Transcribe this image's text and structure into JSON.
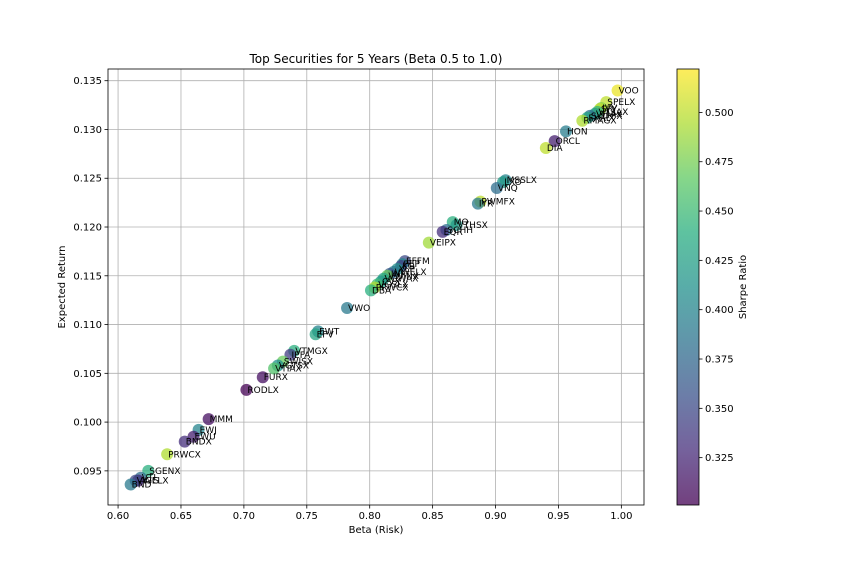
{
  "chart_data": {
    "type": "scatter",
    "title": "Top Securities for 5 Years (Beta 0.5 to 1.0)",
    "xlabel": "Beta (Risk)",
    "ylabel": "Expected Return",
    "xlim": [
      0.592,
      1.018
    ],
    "ylim": [
      0.0915,
      0.1362
    ],
    "xticks": [
      "0.60",
      "0.65",
      "0.70",
      "0.75",
      "0.80",
      "0.85",
      "0.90",
      "0.95",
      "1.00"
    ],
    "yticks": [
      "0.095",
      "0.100",
      "0.105",
      "0.110",
      "0.115",
      "0.120",
      "0.125",
      "0.130",
      "0.135"
    ],
    "grid": true,
    "colorbar": {
      "label": "Sharpe Ratio",
      "colormap": "viridis",
      "range": [
        0.301,
        0.522
      ],
      "ticks": [
        "0.325",
        "0.350",
        "0.375",
        "0.400",
        "0.425",
        "0.450",
        "0.475",
        "0.500"
      ]
    },
    "points": [
      {
        "label": "VOO",
        "x": 0.997,
        "y": 0.134,
        "sharpe": 0.515
      },
      {
        "label": "SPELX",
        "x": 0.988,
        "y": 0.1328,
        "sharpe": 0.5
      },
      {
        "label": "IVV",
        "x": 0.984,
        "y": 0.1322,
        "sharpe": 0.48
      },
      {
        "label": "SPY",
        "x": 0.983,
        "y": 0.1321,
        "sharpe": 0.5
      },
      {
        "label": "VTSAX",
        "x": 0.981,
        "y": 0.1318,
        "sharpe": 0.445
      },
      {
        "label": "VFIAX",
        "x": 0.979,
        "y": 0.1316,
        "sharpe": 0.42
      },
      {
        "label": "SWPPX",
        "x": 0.975,
        "y": 0.1314,
        "sharpe": 0.38
      },
      {
        "label": "FXAIX",
        "x": 0.973,
        "y": 0.1312,
        "sharpe": 0.43
      },
      {
        "label": "RMAGX",
        "x": 0.969,
        "y": 0.1309,
        "sharpe": 0.495
      },
      {
        "label": "HON",
        "x": 0.956,
        "y": 0.1298,
        "sharpe": 0.395
      },
      {
        "label": "ORCL",
        "x": 0.947,
        "y": 0.1288,
        "sharpe": 0.32
      },
      {
        "label": "DIA",
        "x": 0.94,
        "y": 0.1281,
        "sharpe": 0.5
      },
      {
        "label": "MSSLX",
        "x": 0.908,
        "y": 0.1248,
        "sharpe": 0.4
      },
      {
        "label": "LXO",
        "x": 0.906,
        "y": 0.1246,
        "sharpe": 0.42
      },
      {
        "label": "VNQ",
        "x": 0.901,
        "y": 0.124,
        "sharpe": 0.38
      },
      {
        "label": "PWMFX",
        "x": 0.888,
        "y": 0.1226,
        "sharpe": 0.5
      },
      {
        "label": "IYR",
        "x": 0.886,
        "y": 0.1224,
        "sharpe": 0.39
      },
      {
        "label": "MO",
        "x": 0.866,
        "y": 0.1205,
        "sharpe": 0.44
      },
      {
        "label": "VTHSX",
        "x": 0.869,
        "y": 0.1202,
        "sharpe": 0.42
      },
      {
        "label": "SCHH",
        "x": 0.861,
        "y": 0.1197,
        "sharpe": 0.38
      },
      {
        "label": "EQR",
        "x": 0.858,
        "y": 0.1195,
        "sharpe": 0.33
      },
      {
        "label": "VEIPX",
        "x": 0.847,
        "y": 0.1184,
        "sharpe": 0.49
      },
      {
        "label": "EFFM",
        "x": 0.828,
        "y": 0.1165,
        "sharpe": 0.35
      },
      {
        "label": "PEP",
        "x": 0.826,
        "y": 0.1162,
        "sharpe": 0.4
      },
      {
        "label": "KO",
        "x": 0.825,
        "y": 0.116,
        "sharpe": 0.345
      },
      {
        "label": "XLP",
        "x": 0.822,
        "y": 0.1157,
        "sharpe": 0.41
      },
      {
        "label": "VWELX",
        "x": 0.819,
        "y": 0.1154,
        "sharpe": 0.39
      },
      {
        "label": "JNJ",
        "x": 0.816,
        "y": 0.1152,
        "sharpe": 0.36
      },
      {
        "label": "VWINX",
        "x": 0.814,
        "y": 0.115,
        "sharpe": 0.47
      },
      {
        "label": "VGWAX",
        "x": 0.811,
        "y": 0.1147,
        "sharpe": 0.43
      },
      {
        "label": "CVX",
        "x": 0.809,
        "y": 0.1144,
        "sharpe": 0.42
      },
      {
        "label": "VGSLX",
        "x": 0.806,
        "y": 0.1141,
        "sharpe": 0.45
      },
      {
        "label": "PRWCX",
        "x": 0.804,
        "y": 0.1138,
        "sharpe": 0.495
      },
      {
        "label": "DBA",
        "x": 0.801,
        "y": 0.1135,
        "sharpe": 0.44
      },
      {
        "label": "VWO",
        "x": 0.782,
        "y": 0.1117,
        "sharpe": 0.39
      },
      {
        "label": "EWT",
        "x": 0.759,
        "y": 0.1093,
        "sharpe": 0.4
      },
      {
        "label": "EFV",
        "x": 0.757,
        "y": 0.109,
        "sharpe": 0.43
      },
      {
        "label": "VTMGX",
        "x": 0.74,
        "y": 0.1073,
        "sharpe": 0.44
      },
      {
        "label": "IEFA",
        "x": 0.737,
        "y": 0.1069,
        "sharpe": 0.34
      },
      {
        "label": "SWISX",
        "x": 0.731,
        "y": 0.1062,
        "sharpe": 0.47
      },
      {
        "label": "VGTSX",
        "x": 0.727,
        "y": 0.1058,
        "sharpe": 0.41
      },
      {
        "label": "VTIAX",
        "x": 0.724,
        "y": 0.1055,
        "sharpe": 0.46
      },
      {
        "label": "FURX",
        "x": 0.715,
        "y": 0.1046,
        "sharpe": 0.31
      },
      {
        "label": "RODLX",
        "x": 0.702,
        "y": 0.1033,
        "sharpe": 0.3
      },
      {
        "label": "MMM",
        "x": 0.672,
        "y": 0.1003,
        "sharpe": 0.31
      },
      {
        "label": "EWJ",
        "x": 0.664,
        "y": 0.0992,
        "sharpe": 0.4
      },
      {
        "label": "EWU",
        "x": 0.66,
        "y": 0.0985,
        "sharpe": 0.32
      },
      {
        "label": "BNDX",
        "x": 0.653,
        "y": 0.098,
        "sharpe": 0.33
      },
      {
        "label": "PRWCX",
        "x": 0.639,
        "y": 0.0967,
        "sharpe": 0.495
      },
      {
        "label": "SGENX",
        "x": 0.624,
        "y": 0.095,
        "sharpe": 0.44
      },
      {
        "label": "VTI",
        "x": 0.618,
        "y": 0.0943,
        "sharpe": 0.38
      },
      {
        "label": "AGG",
        "x": 0.616,
        "y": 0.094,
        "sharpe": 0.32
      },
      {
        "label": "VWELX",
        "x": 0.614,
        "y": 0.094,
        "sharpe": 0.35
      },
      {
        "label": "BND",
        "x": 0.61,
        "y": 0.0936,
        "sharpe": 0.39
      }
    ]
  }
}
